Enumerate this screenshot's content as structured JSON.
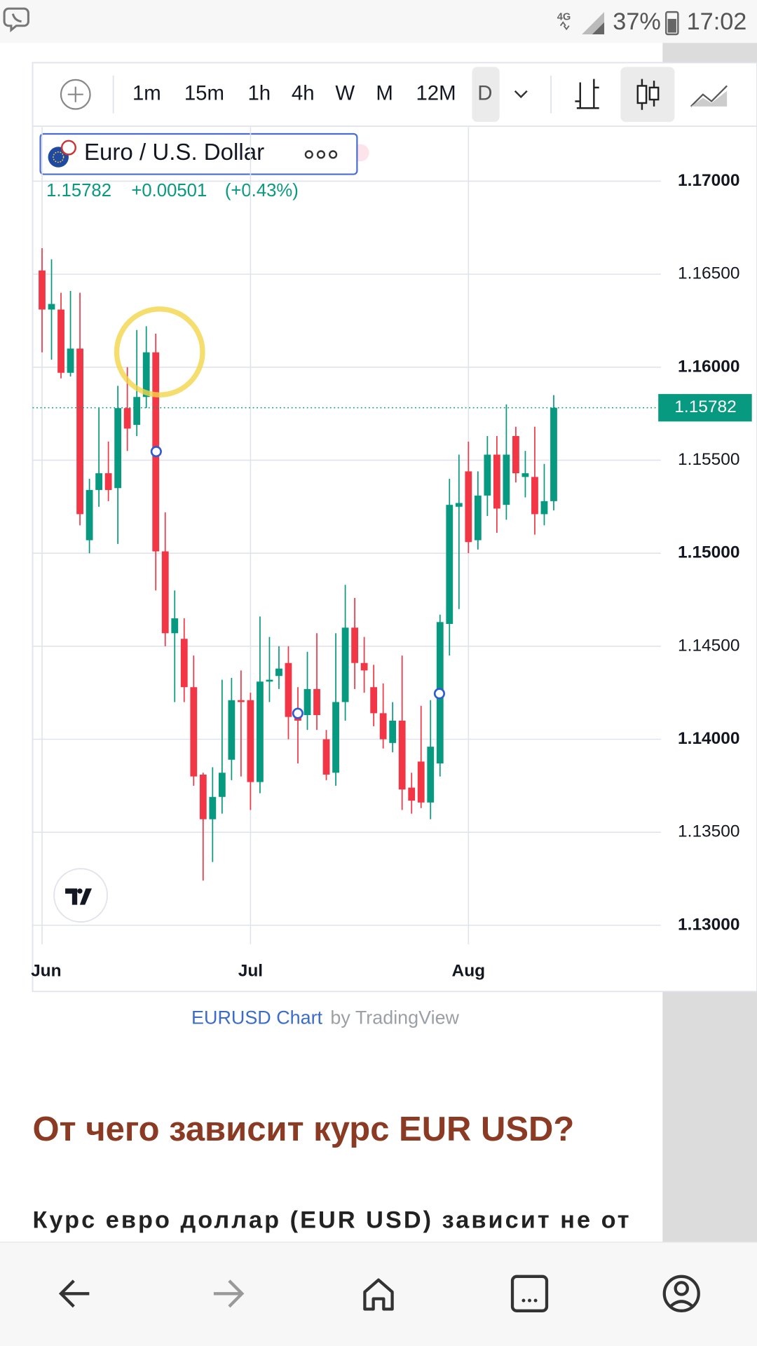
{
  "status_bar": {
    "network": "4G",
    "battery": "37%",
    "time": "17:02"
  },
  "toolbar": {
    "intervals": [
      "1m",
      "15m",
      "1h",
      "4h",
      "W",
      "M",
      "12M",
      "D"
    ]
  },
  "symbol": {
    "name": "Euro / U.S. Dollar",
    "change": "+0.00501",
    "change_percent": "(+0.43%)"
  },
  "chart_data": {
    "type": "candlestick",
    "categories": [
      "Jun",
      null,
      null,
      null,
      null,
      null,
      null,
      null,
      null,
      null,
      null,
      null,
      null,
      null,
      null,
      null,
      null,
      null,
      null,
      null,
      null,
      null,
      "Jul",
      null,
      null,
      null,
      null,
      null,
      null,
      null,
      null,
      null,
      null,
      null,
      null,
      null,
      null,
      null,
      null,
      null,
      null,
      null,
      null,
      null,
      null,
      "Aug",
      null,
      null,
      null,
      null,
      null,
      null,
      null,
      null,
      null
    ],
    "open": [
      1.1652,
      1.1631,
      1.1631,
      1.1597,
      1.161,
      1.1507,
      1.1534,
      1.1543,
      1.1535,
      1.1578,
      1.1569,
      1.1584,
      1.1608,
      1.1501,
      1.1457,
      1.1454,
      1.1428,
      1.1381,
      1.1357,
      1.1369,
      1.1389,
      1.1421,
      1.1421,
      1.1377,
      1.1431,
      1.1434,
      1.1441,
      1.1412,
      1.1413,
      1.1427,
      1.14,
      1.1382,
      1.142,
      1.146,
      1.1441,
      1.1428,
      1.1414,
      1.1398,
      1.141,
      1.1374,
      1.1388,
      1.1366,
      1.1387,
      1.1462,
      1.1525,
      1.1544,
      1.1507,
      1.1531,
      1.1553,
      1.1526,
      1.1563,
      1.1541,
      1.1541,
      1.1521,
      1.1528
    ],
    "high": [
      1.1664,
      1.1658,
      1.164,
      1.1641,
      1.164,
      1.154,
      1.1578,
      1.156,
      1.159,
      1.16,
      1.162,
      1.1622,
      1.1618,
      1.1522,
      1.148,
      1.1465,
      1.1445,
      1.1382,
      1.1385,
      1.1432,
      1.1433,
      1.1437,
      1.1425,
      1.1466,
      1.1455,
      1.145,
      1.145,
      1.1428,
      1.1447,
      1.1457,
      1.1405,
      1.1457,
      1.1483,
      1.1476,
      1.1455,
      1.144,
      1.143,
      1.142,
      1.1445,
      1.1382,
      1.1418,
      1.1421,
      1.1467,
      1.154,
      1.1553,
      1.156,
      1.1544,
      1.1563,
      1.1563,
      1.158,
      1.1568,
      1.1555,
      1.1568,
      1.1548,
      1.1585
    ],
    "low": [
      1.1608,
      1.1604,
      1.1594,
      1.1595,
      1.1515,
      1.15,
      1.1525,
      1.1528,
      1.1505,
      1.1555,
      1.1563,
      1.1578,
      1.148,
      1.145,
      1.142,
      1.142,
      1.1375,
      1.1324,
      1.1334,
      1.136,
      1.1378,
      1.138,
      1.1362,
      1.1371,
      1.142,
      1.1427,
      1.14,
      1.1387,
      1.1405,
      1.1405,
      1.1378,
      1.1375,
      1.141,
      1.1427,
      1.1425,
      1.1407,
      1.1395,
      1.1393,
      1.1362,
      1.136,
      1.1363,
      1.1357,
      1.138,
      1.1445,
      1.147,
      1.15,
      1.1502,
      1.152,
      1.1511,
      1.1518,
      1.1538,
      1.153,
      1.151,
      1.1515,
      1.1523
    ],
    "close": [
      1.1631,
      1.1634,
      1.1597,
      1.161,
      1.1521,
      1.1534,
      1.1543,
      1.1534,
      1.1578,
      1.1567,
      1.1584,
      1.1608,
      1.1501,
      1.1457,
      1.1465,
      1.1428,
      1.138,
      1.1357,
      1.1369,
      1.1382,
      1.1421,
      1.142,
      1.1377,
      1.1431,
      1.1432,
      1.1438,
      1.1412,
      1.141,
      1.1427,
      1.1413,
      1.1381,
      1.142,
      1.146,
      1.1441,
      1.1437,
      1.1414,
      1.14,
      1.141,
      1.1373,
      1.1367,
      1.1366,
      1.1396,
      1.1463,
      1.1526,
      1.1527,
      1.1506,
      1.1531,
      1.1553,
      1.1524,
      1.1553,
      1.1543,
      1.1543,
      1.1521,
      1.1528,
      1.15782
    ],
    "up_color": "#089981",
    "down_color": "#f23645",
    "ylim": [
      1.12898,
      1.17291
    ],
    "yticks": [
      {
        "value": 1.13,
        "label": "1.13000"
      },
      {
        "value": 1.135,
        "label": "1.13500"
      },
      {
        "value": 1.14,
        "label": "1.14000"
      },
      {
        "value": 1.145,
        "label": "1.14500"
      },
      {
        "value": 1.15,
        "label": "1.15000"
      },
      {
        "value": 1.155,
        "label": "1.15500"
      },
      {
        "value": 1.16,
        "label": "1.16000"
      },
      {
        "value": 1.165,
        "label": "1.16500"
      },
      {
        "value": 1.17,
        "label": "1.17000"
      }
    ],
    "grid": true,
    "last_price": {
      "value": 1.15782,
      "label": "1.15782"
    }
  },
  "caption": {
    "link": "EURUSD Chart",
    "suffix": "by TradingView"
  },
  "article": {
    "heading": "От чего зависит курс EUR USD?",
    "paragraph": "Курс евро доллар (EUR USD) зависит не от"
  }
}
